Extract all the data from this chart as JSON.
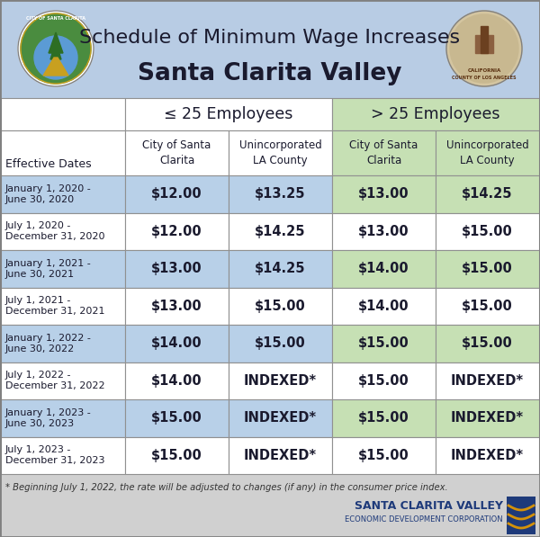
{
  "title_line1": "Schedule of Minimum Wage Increases",
  "title_line2": "Santa Clarita Valley",
  "header_bg": "#b8cce4",
  "blue_row_bg": "#b8d0e8",
  "green_row_bg": "#c6e0b4",
  "white_row_bg": "#ffffff",
  "outer_bg": "#d0d0d0",
  "col_header_le25": "≤ 25 Employees",
  "col_header_gt25": "> 25 Employees",
  "sub_col1": "City of Santa\nClarita",
  "sub_col2": "Unincorporated\nLA County",
  "sub_col3": "City of Santa\nClarita",
  "sub_col4": "Unincorporated\nLA County",
  "effective_dates_label": "Effective Dates",
  "rows": [
    {
      "date": "January 1, 2020 -\nJune 30, 2020",
      "c1": "$12.00",
      "c2": "$13.25",
      "c3": "$13.00",
      "c4": "$14.25",
      "shaded": true
    },
    {
      "date": "July 1, 2020 -\nDecember 31, 2020",
      "c1": "$12.00",
      "c2": "$14.25",
      "c3": "$13.00",
      "c4": "$15.00",
      "shaded": false
    },
    {
      "date": "January 1, 2021 -\nJune 30, 2021",
      "c1": "$13.00",
      "c2": "$14.25",
      "c3": "$14.00",
      "c4": "$15.00",
      "shaded": true
    },
    {
      "date": "July 1, 2021 -\nDecember 31, 2021",
      "c1": "$13.00",
      "c2": "$15.00",
      "c3": "$14.00",
      "c4": "$15.00",
      "shaded": false
    },
    {
      "date": "January 1, 2022 -\nJune 30, 2022",
      "c1": "$14.00",
      "c2": "$15.00",
      "c3": "$15.00",
      "c4": "$15.00",
      "shaded": true
    },
    {
      "date": "July 1, 2022 -\nDecember 31, 2022",
      "c1": "$14.00",
      "c2": "INDEXED*",
      "c3": "$15.00",
      "c4": "INDEXED*",
      "shaded": false
    },
    {
      "date": "January 1, 2023 -\nJune 30, 2023",
      "c1": "$15.00",
      "c2": "INDEXED*",
      "c3": "$15.00",
      "c4": "INDEXED*",
      "shaded": true
    },
    {
      "date": "July 1, 2023 -\nDecember 31, 2023",
      "c1": "$15.00",
      "c2": "INDEXED*",
      "c3": "$15.00",
      "c4": "INDEXED*",
      "shaded": false
    }
  ],
  "footnote": "* Beginning July 1, 2022, the rate will be adjusted to changes (if any) in the consumer price index.",
  "footer_logo_text1": "SANTA CLARITA VALLEY",
  "footer_logo_text2": "ECONOMIC DEVELOPMENT CORPORATION",
  "border_color": "#808080",
  "text_dark": "#1a1a2e",
  "grid_color": "#909090"
}
